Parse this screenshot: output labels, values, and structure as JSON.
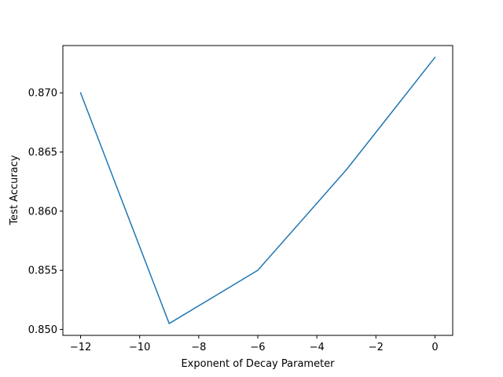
{
  "chart_data": {
    "type": "line",
    "title": "",
    "xlabel": "Exponent of Decay Parameter",
    "ylabel": "Test Accuracy",
    "xlim": [
      -12.6,
      0.6
    ],
    "ylim": [
      0.8495,
      0.874
    ],
    "grid": false,
    "legend": "none",
    "x_ticks": [
      -12,
      -10,
      -8,
      -6,
      -4,
      -2,
      0
    ],
    "x_tick_labels": [
      "−12",
      "−10",
      "−8",
      "−6",
      "−4",
      "−2",
      "0"
    ],
    "y_ticks": [
      0.85,
      0.855,
      0.86,
      0.865,
      0.87
    ],
    "y_tick_labels": [
      "0.850",
      "0.855",
      "0.860",
      "0.865",
      "0.870"
    ],
    "series": [
      {
        "color": "#1f77b4",
        "x": [
          -12,
          -9,
          -6,
          -3,
          0
        ],
        "y": [
          0.87,
          0.8505,
          0.855,
          0.8635,
          0.873
        ]
      }
    ]
  }
}
